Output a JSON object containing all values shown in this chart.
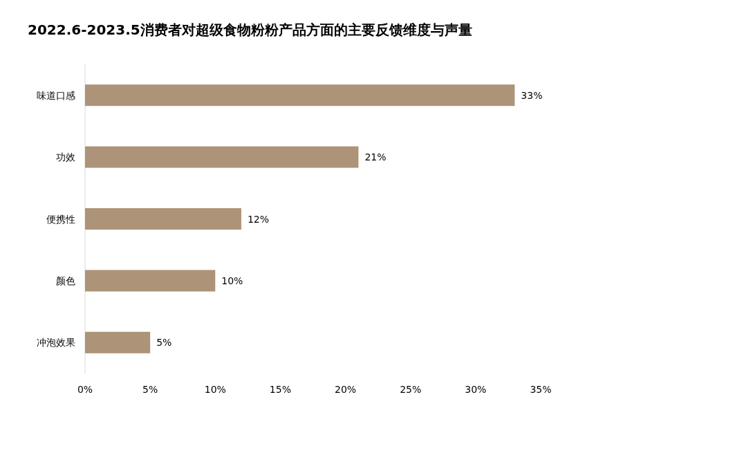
{
  "chart_data": {
    "type": "bar",
    "orientation": "horizontal",
    "title": "2022.6-2023.5消费者对超级食物粉粉产品方面的主要反馈维度与声量",
    "categories": [
      "味道口感",
      "功效",
      "便携性",
      "颜色",
      "冲泡效果"
    ],
    "values": [
      33,
      21,
      12,
      10,
      5
    ],
    "value_labels": [
      "33%",
      "21%",
      "12%",
      "10%",
      "5%"
    ],
    "color": "#ad9378",
    "xlim": [
      0,
      35
    ],
    "xticks": [
      {
        "value": 0,
        "label": "0%"
      },
      {
        "value": 5,
        "label": "5%"
      },
      {
        "value": 10,
        "label": "10%"
      },
      {
        "value": 15,
        "label": "15%"
      },
      {
        "value": 20,
        "label": "20%"
      },
      {
        "value": 25,
        "label": "25%"
      },
      {
        "value": 30,
        "label": "30%"
      },
      {
        "value": 35,
        "label": "35%"
      }
    ]
  }
}
